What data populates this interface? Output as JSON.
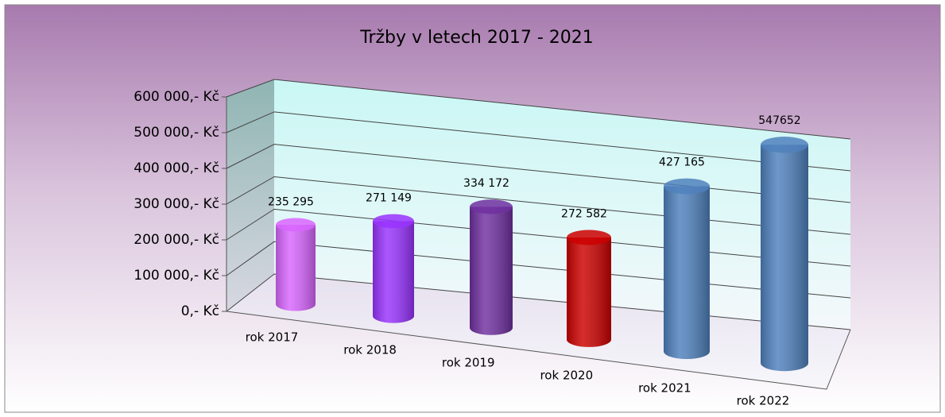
{
  "chart_data": {
    "type": "bar3d",
    "title": "Tržby v letech 2017 - 2021",
    "categories": [
      "rok 2017",
      "rok 2018",
      "rok 2019",
      "rok 2020",
      "rok 2021",
      "rok 2022"
    ],
    "values": [
      235295,
      271149,
      334172,
      272582,
      427165,
      547652
    ],
    "value_labels": [
      "235 295",
      "271 149",
      "334 172",
      "272 582",
      "427 165",
      "547652"
    ],
    "colors": [
      "#d966ff",
      "#9933ff",
      "#7030a0",
      "#cc0000",
      "#4f81bd",
      "#4f81bd"
    ],
    "ylim": [
      0,
      600000
    ],
    "yticks": [
      {
        "value": 0,
        "label": "0,- Kč"
      },
      {
        "value": 100000,
        "label": "100 000,- Kč"
      },
      {
        "value": 200000,
        "label": "200 000,- Kč"
      },
      {
        "value": 300000,
        "label": "300 000,- Kč"
      },
      {
        "value": 400000,
        "label": "400 000,- Kč"
      },
      {
        "value": 500000,
        "label": "500 000,- Kč"
      },
      {
        "value": 600000,
        "label": "600 000,- Kč"
      }
    ],
    "grid": true
  }
}
